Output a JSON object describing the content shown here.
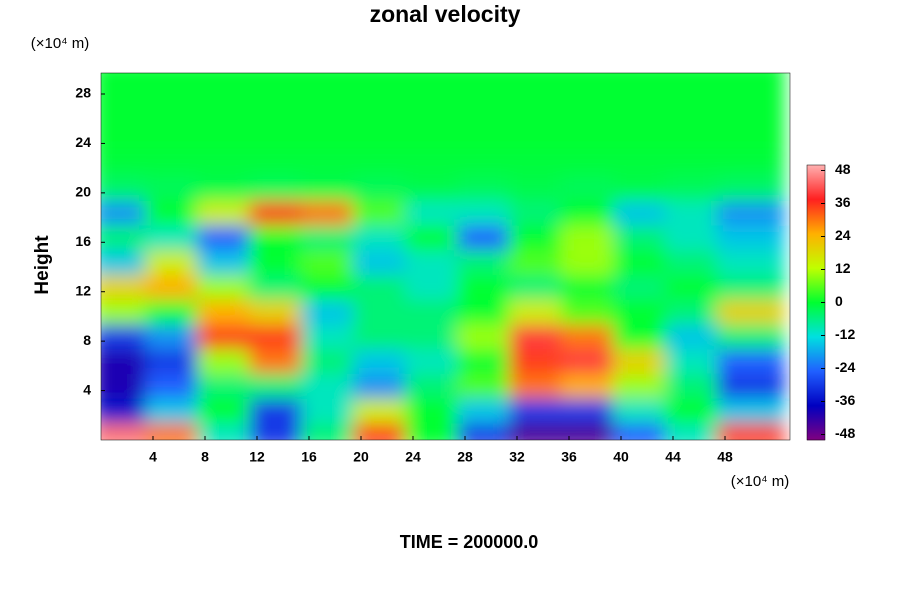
{
  "chart_data": {
    "type": "heatmap",
    "title": "zonal velocity",
    "ylabel": "Height",
    "y_unit": "(×10⁴ m)",
    "x_unit": "(×10⁴ m)",
    "footer": "TIME = 200000.0",
    "xlim": [
      0,
      53
    ],
    "ylim": [
      0,
      29.7
    ],
    "xticks": [
      4,
      8,
      12,
      16,
      20,
      24,
      28,
      32,
      36,
      40,
      44,
      48
    ],
    "yticks": [
      4,
      8,
      12,
      16,
      20,
      24,
      28
    ],
    "clim": [
      -50,
      50
    ],
    "cticks": [
      -48,
      -36,
      -24,
      -12,
      0,
      12,
      24,
      36,
      48
    ],
    "colormap": [
      "#800080",
      "#0000c0",
      "#2060ff",
      "#00e0e0",
      "#00ff30",
      "#c0ff00",
      "#ffb000",
      "#ff2020",
      "#ffb0b0"
    ],
    "x": [
      2,
      6,
      10,
      14,
      18,
      22,
      26,
      30,
      34,
      38,
      42,
      46,
      50
    ],
    "y": [
      1,
      3,
      5,
      7,
      9,
      11,
      13,
      15,
      17,
      19,
      21,
      23,
      25,
      27,
      29
    ],
    "z": [
      [
        45,
        30,
        -10,
        -30,
        -5,
        35,
        0,
        -30,
        -45,
        -45,
        -25,
        -10,
        35
      ],
      [
        -35,
        -15,
        0,
        -30,
        -10,
        15,
        0,
        -15,
        -30,
        -30,
        -10,
        0,
        -15
      ],
      [
        -40,
        -25,
        -5,
        -5,
        -10,
        -20,
        -5,
        5,
        30,
        25,
        10,
        -5,
        -30
      ],
      [
        -40,
        -30,
        10,
        30,
        -5,
        -15,
        -10,
        0,
        35,
        40,
        20,
        -10,
        -25
      ],
      [
        -30,
        -20,
        35,
        35,
        -10,
        -5,
        -5,
        10,
        40,
        30,
        0,
        -15,
        -5
      ],
      [
        10,
        0,
        25,
        20,
        -15,
        -5,
        -5,
        0,
        15,
        5,
        0,
        -5,
        20
      ],
      [
        20,
        25,
        10,
        -5,
        0,
        -5,
        -10,
        0,
        -5,
        0,
        -5,
        0,
        -5
      ],
      [
        -15,
        15,
        -15,
        0,
        5,
        -15,
        -10,
        -5,
        5,
        10,
        0,
        -5,
        -10
      ],
      [
        -5,
        -10,
        -25,
        0,
        -5,
        -10,
        0,
        -25,
        0,
        10,
        -5,
        -10,
        -15
      ],
      [
        -20,
        0,
        15,
        35,
        30,
        5,
        -10,
        -10,
        -5,
        0,
        -15,
        -10,
        -20
      ],
      [
        -4,
        -3,
        -2,
        -3,
        -2,
        -3,
        -2,
        -3,
        -2,
        -3,
        -2,
        -3,
        -4
      ],
      [
        -1,
        -1,
        -1,
        -1,
        -1,
        -1,
        -1,
        -1,
        -1,
        -1,
        -1,
        -1,
        -1
      ],
      [
        0,
        0,
        0,
        0,
        0,
        0,
        0,
        0,
        0,
        0,
        0,
        0,
        0
      ],
      [
        0,
        0,
        0,
        0,
        0,
        0,
        0,
        0,
        0,
        0,
        0,
        0,
        0
      ],
      [
        0,
        0,
        0,
        0,
        0,
        0,
        0,
        0,
        0,
        0,
        0,
        0,
        0
      ]
    ]
  }
}
